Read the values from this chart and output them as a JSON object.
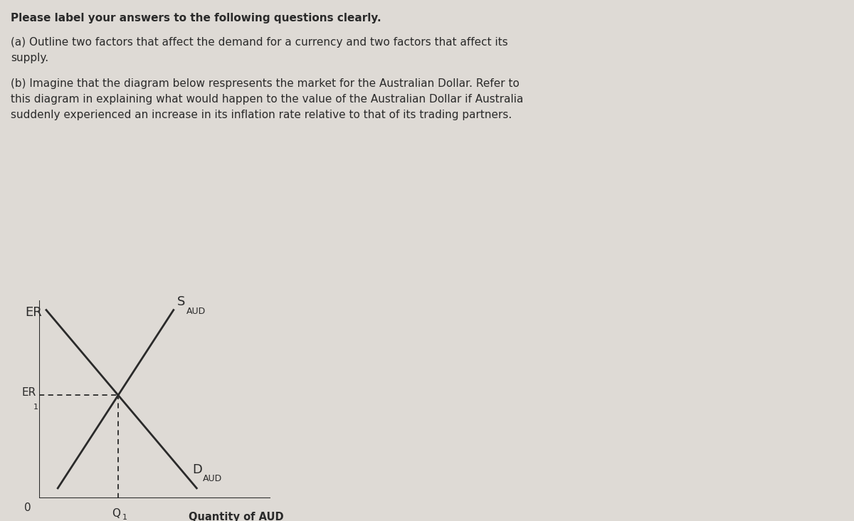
{
  "background_color": "#dedad5",
  "text_color": "#2a2a2a",
  "title_bold": "Please label your answers to the following questions clearly.",
  "para_a_prefix": "(a) Outline two factors that affect the demand for a currency and two factors that affect its",
  "para_a_line2": "supply.",
  "para_b_line1": "(b) Imagine that the diagram below respresents the market for the Australian Dollar. Refer to",
  "para_b_line2": "this diagram in explaining what would happen to the value of the Australian Dollar if Australia",
  "para_b_line3": "suddenly experienced an increase in its inflation rate relative to that of its trading partners.",
  "ylabel": "ER",
  "xlabel": "Quantity of AUD",
  "er1_label": "ER",
  "er1_sub": "1",
  "q1_label": "Q",
  "q1_sub": "1",
  "s_label": "S",
  "s_sub": "AUD",
  "d_label": "D",
  "d_sub": "AUD",
  "zero_label": "0",
  "line_color": "#2a2a2a",
  "dashed_color": "#2a2a2a",
  "font_size_title": 11,
  "font_size_text": 11,
  "font_size_axis_label": 11,
  "font_size_curve_label": 12,
  "font_size_sub": 8
}
